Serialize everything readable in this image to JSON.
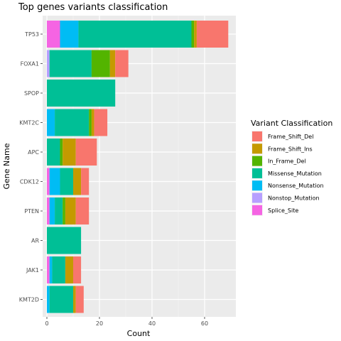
{
  "chart_data": {
    "type": "bar",
    "orientation": "horizontal",
    "stacked": true,
    "title": "Top genes variants classification",
    "xlabel": "Count",
    "ylabel": "Gene Name",
    "xlim": [
      0,
      70
    ],
    "x_ticks": [
      0,
      20,
      40,
      60
    ],
    "grid": true,
    "legend_position": "right",
    "legend_title": "Variant Classification",
    "categories": [
      "TP53",
      "FOXA1",
      "SPOP",
      "KMT2C",
      "APC",
      "CDK12",
      "PTEN",
      "AR",
      "JAK1",
      "KMT2D"
    ],
    "series": [
      {
        "name": "Splice_Site",
        "color": "#F564E3",
        "values": [
          5,
          0,
          0,
          0,
          0,
          1,
          1,
          0,
          1,
          0
        ]
      },
      {
        "name": "Nonstop_Mutation",
        "color": "#B79FFF",
        "values": [
          0,
          1,
          0,
          0,
          0,
          0,
          0,
          0,
          0,
          0
        ]
      },
      {
        "name": "Nonsense_Mutation",
        "color": "#00BCF4",
        "values": [
          7,
          0,
          0,
          3,
          0,
          4,
          2,
          0,
          1,
          1
        ]
      },
      {
        "name": "Missense_Mutation",
        "color": "#00BF96",
        "values": [
          43,
          16,
          26,
          13,
          5,
          5,
          3,
          13,
          5,
          9
        ]
      },
      {
        "name": "In_Frame_Del",
        "color": "#53B400",
        "values": [
          1,
          7,
          0,
          1,
          1,
          0,
          1,
          0,
          0,
          0
        ]
      },
      {
        "name": "Frame_Shift_Ins",
        "color": "#C49A00",
        "values": [
          1,
          2,
          0,
          1,
          5,
          3,
          4,
          0,
          3,
          1
        ]
      },
      {
        "name": "Frame_Shift_Del",
        "color": "#F8766D",
        "values": [
          12,
          5,
          0,
          5,
          8,
          3,
          5,
          0,
          3,
          3
        ]
      }
    ],
    "legend_order": [
      "Frame_Shift_Del",
      "Frame_Shift_Ins",
      "In_Frame_Del",
      "Missense_Mutation",
      "Nonsense_Mutation",
      "Nonstop_Mutation",
      "Splice_Site"
    ]
  }
}
